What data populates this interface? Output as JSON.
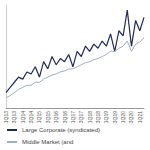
{
  "chart_data": {
    "type": "line",
    "categories": [
      "1Q13",
      null,
      "3Q13",
      null,
      "1Q14",
      null,
      "3Q14",
      null,
      "1Q15",
      null,
      "3Q15",
      null,
      "1Q16",
      null,
      "3Q16",
      null,
      "1Q17",
      null,
      "3Q17",
      null,
      "1Q18",
      null,
      "3Q18",
      null,
      "1Q19",
      null,
      "3Q19",
      null,
      "1Q20",
      null,
      "3Q20",
      null,
      "1Q21",
      null
    ],
    "series": [
      {
        "name": "Large Corporate (syndicated)",
        "color": "#1f2a5a",
        "values": [
          15,
          20,
          25,
          30,
          28,
          35,
          33,
          40,
          30,
          45,
          38,
          50,
          42,
          48,
          45,
          52,
          40,
          55,
          50,
          60,
          55,
          62,
          58,
          65,
          60,
          72,
          55,
          75,
          70,
          95,
          60,
          85,
          75,
          88
        ]
      },
      {
        "name": "Middle Market (and",
        "color": "#9bb0c8",
        "values": [
          10,
          12,
          15,
          18,
          20,
          22,
          22,
          25,
          25,
          28,
          30,
          32,
          33,
          35,
          36,
          38,
          38,
          40,
          42,
          44,
          45,
          47,
          48,
          50,
          52,
          55,
          55,
          58,
          60,
          65,
          55,
          62,
          64,
          68
        ]
      }
    ],
    "ylim": [
      0,
      100
    ],
    "yticks": [],
    "grid": false,
    "legend": "bottom",
    "tick_labels": "x"
  }
}
